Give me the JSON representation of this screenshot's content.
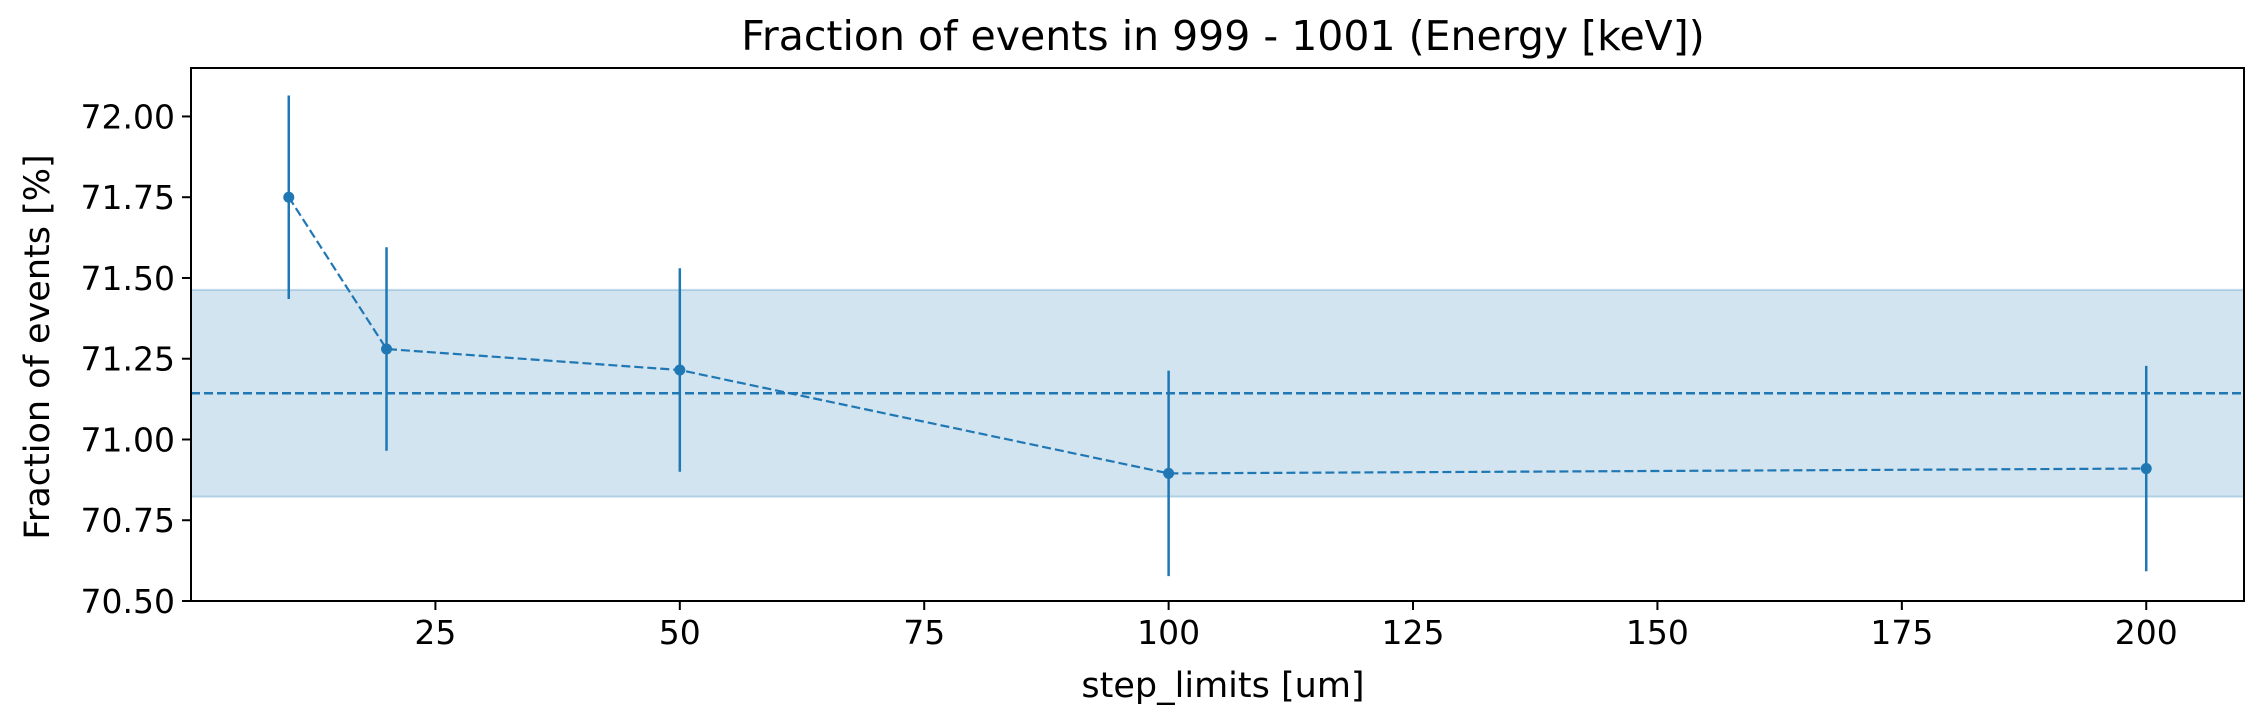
{
  "chart_data": {
    "type": "line",
    "title": "Fraction of events in 999 - 1001 (Energy [keV])",
    "xlabel": "step_limits [um]",
    "ylabel": "Fraction of events [%]",
    "xlim": [
      0,
      210
    ],
    "ylim": [
      70.5,
      72.15
    ],
    "xticks": [
      25,
      50,
      75,
      100,
      125,
      150,
      175,
      200
    ],
    "xtick_labels": [
      "25",
      "50",
      "75",
      "100",
      "125",
      "150",
      "175",
      "200"
    ],
    "yticks": [
      70.5,
      70.75,
      71.0,
      71.25,
      71.5,
      71.75,
      72.0
    ],
    "ytick_labels": [
      "70.50",
      "70.75",
      "71.00",
      "71.25",
      "71.50",
      "71.75",
      "72.00"
    ],
    "grid": false,
    "series": [
      {
        "x": [
          10,
          20,
          50,
          100,
          200
        ],
        "y": [
          71.75,
          71.28,
          71.215,
          70.895,
          70.91
        ],
        "yerr": [
          0.315,
          0.315,
          0.315,
          0.318,
          0.318
        ],
        "color": "#1f77b4",
        "line_style": "dashed",
        "marker": "circle"
      }
    ],
    "mean_line": {
      "y": 71.143,
      "color": "#1f77b4",
      "line_style": "dashed"
    },
    "band": {
      "y_low": 70.823,
      "y_high": 71.463,
      "color": "#1f77b4",
      "opacity": 0.2
    }
  }
}
